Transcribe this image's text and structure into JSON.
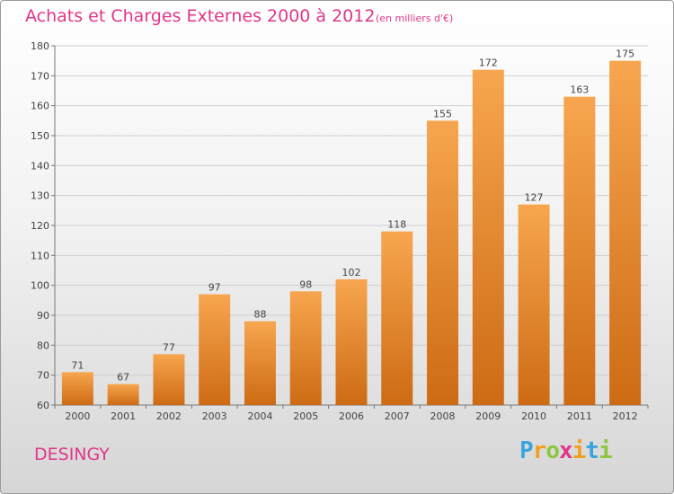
{
  "title": "Achats et Charges Externes 2000 à 2012",
  "title_unit": "(en milliers d'€)",
  "place": "DESINGY",
  "logo": {
    "text": "Proxiti",
    "letters": [
      {
        "ch": "P",
        "color": "#3aa5dc"
      },
      {
        "ch": "r",
        "color": "#f0a020"
      },
      {
        "ch": "o",
        "color": "#8cc63f"
      },
      {
        "ch": "x",
        "color": "#e0368a"
      },
      {
        "ch": "i",
        "color": "#f0a020"
      },
      {
        "ch": "t",
        "color": "#3aa5dc"
      },
      {
        "ch": "i",
        "color": "#8cc63f"
      }
    ]
  },
  "colors": {
    "bar_top": "#f7a64f",
    "bar_bottom": "#cd6b14",
    "accent": "#e0368a"
  },
  "chart_data": {
    "type": "bar",
    "categories": [
      "2000",
      "2001",
      "2002",
      "2003",
      "2004",
      "2005",
      "2006",
      "2007",
      "2008",
      "2009",
      "2010",
      "2011",
      "2012"
    ],
    "values": [
      71,
      67,
      77,
      97,
      88,
      98,
      102,
      118,
      155,
      172,
      127,
      163,
      175
    ],
    "ylim": [
      60,
      180
    ],
    "yticks": [
      60,
      70,
      80,
      90,
      100,
      110,
      120,
      130,
      140,
      150,
      160,
      170,
      180
    ],
    "grid": true
  }
}
